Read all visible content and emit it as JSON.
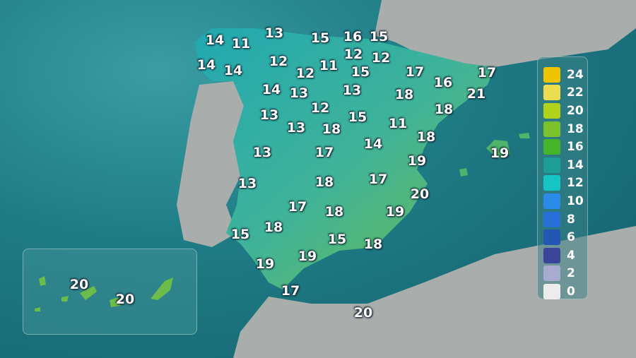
{
  "map": {
    "temperatures": [
      "14",
      "11",
      "13",
      "15",
      "16",
      "15",
      "14",
      "14",
      "12",
      "12",
      "11",
      "12",
      "15",
      "12",
      "17",
      "16",
      "17",
      "21",
      "14",
      "13",
      "13",
      "18",
      "18",
      "13",
      "12",
      "15",
      "13",
      "18",
      "11",
      "18",
      "13",
      "17",
      "14",
      "19",
      "19",
      "13",
      "18",
      "17",
      "20",
      "17",
      "18",
      "19",
      "15",
      "18",
      "15",
      "18",
      "19",
      "19",
      "17",
      "20"
    ],
    "canarias_temperatures": [
      "20",
      "20"
    ],
    "colors": {
      "sea": "#1f7d86",
      "land_other": "#a9adab",
      "spain_land": "#2bb5b0"
    }
  },
  "legend": {
    "items": [
      {
        "label": "24",
        "color": "#f0c400"
      },
      {
        "label": "22",
        "color": "#eedc50"
      },
      {
        "label": "20",
        "color": "#b0d21a"
      },
      {
        "label": "18",
        "color": "#7cc22a"
      },
      {
        "label": "16",
        "color": "#44b528"
      },
      {
        "label": "14",
        "color": "#1d9e94"
      },
      {
        "label": "12",
        "color": "#16c4c4"
      },
      {
        "label": "10",
        "color": "#2a8ae8"
      },
      {
        "label": "8",
        "color": "#2870d8"
      },
      {
        "label": "6",
        "color": "#2456b4"
      },
      {
        "label": "4",
        "color": "#3a4498"
      },
      {
        "label": "2",
        "color": "#a8abd0"
      },
      {
        "label": "0",
        "color": "#ececec"
      }
    ]
  }
}
